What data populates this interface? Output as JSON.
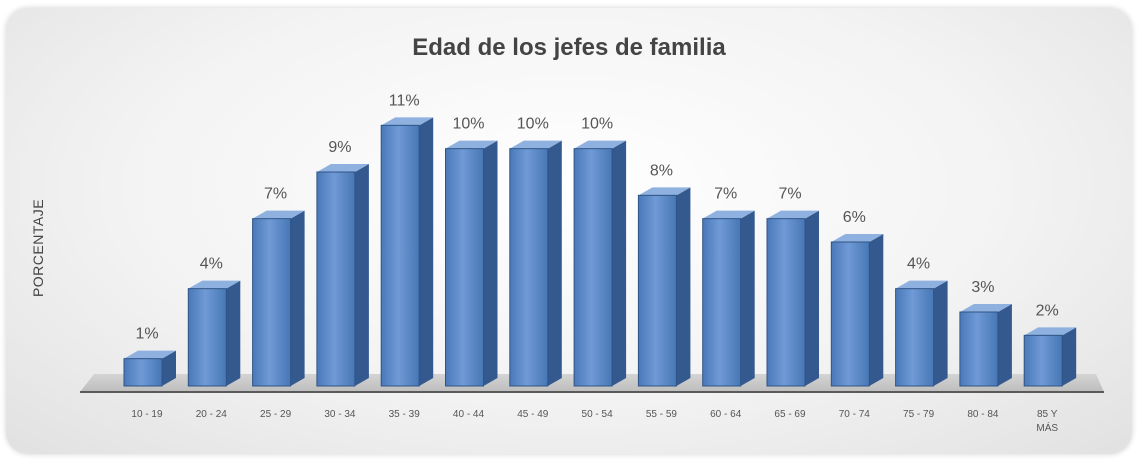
{
  "chart_data": {
    "type": "bar",
    "title": "Edad de los jefes de familia",
    "xlabel": "",
    "ylabel": "PORCENTAJE",
    "categories": [
      "10 - 19",
      "20 - 24",
      "25 - 29",
      "30 - 34",
      "35 - 39",
      "40 - 44",
      "45 - 49",
      "50 - 54",
      "55 - 59",
      "60 - 64",
      "65 - 69",
      "70 - 74",
      "75 - 79",
      "80 - 84",
      "85 Y MÁS"
    ],
    "values": [
      1,
      4,
      7,
      9,
      11,
      10,
      10,
      10,
      8,
      7,
      7,
      6,
      4,
      3,
      2
    ],
    "data_labels": [
      "1%",
      "4%",
      "7%",
      "9%",
      "11%",
      "10%",
      "10%",
      "10%",
      "8%",
      "7%",
      "7%",
      "6%",
      "4%",
      "3%",
      "2%"
    ],
    "ylim": [
      0,
      12
    ],
    "grid": false,
    "legend": "none",
    "bar_color": "#4f81bd",
    "bar_style": "3d-column"
  }
}
